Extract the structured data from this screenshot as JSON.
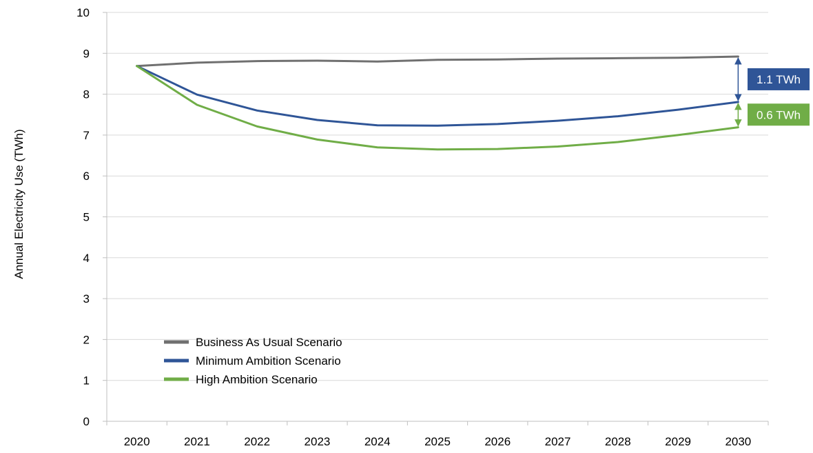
{
  "chart_data": {
    "type": "line",
    "title": "",
    "xlabel": "",
    "ylabel": "Annual Electricity Use (TWh)",
    "categories": [
      "2020",
      "2021",
      "2022",
      "2023",
      "2024",
      "2025",
      "2026",
      "2027",
      "2028",
      "2029",
      "2030"
    ],
    "ylim": [
      0,
      10
    ],
    "yticks": [
      0,
      1,
      2,
      3,
      4,
      5,
      6,
      7,
      8,
      9,
      10
    ],
    "grid": true,
    "legend_position": "lower-left",
    "series": [
      {
        "name": "Business As Usual Scenario",
        "color": "#707070",
        "values": [
          8.69,
          8.77,
          8.81,
          8.82,
          8.8,
          8.84,
          8.85,
          8.87,
          8.88,
          8.89,
          8.92
        ]
      },
      {
        "name": "Minimum Ambition Scenario",
        "color": "#2F5597",
        "values": [
          8.69,
          7.99,
          7.6,
          7.37,
          7.24,
          7.23,
          7.27,
          7.35,
          7.46,
          7.62,
          7.81
        ]
      },
      {
        "name": "High Ambition Scenario",
        "color": "#70AD47",
        "values": [
          8.69,
          7.74,
          7.21,
          6.89,
          6.7,
          6.65,
          6.66,
          6.72,
          6.83,
          7.0,
          7.19
        ]
      }
    ],
    "annotations": [
      {
        "text": "1.1 TWh",
        "color": "#2F5597",
        "from": 8.92,
        "to": 7.81,
        "category": "2030"
      },
      {
        "text": "0.6 TWh",
        "color": "#70AD47",
        "from": 7.81,
        "to": 7.19,
        "category": "2030"
      }
    ]
  }
}
